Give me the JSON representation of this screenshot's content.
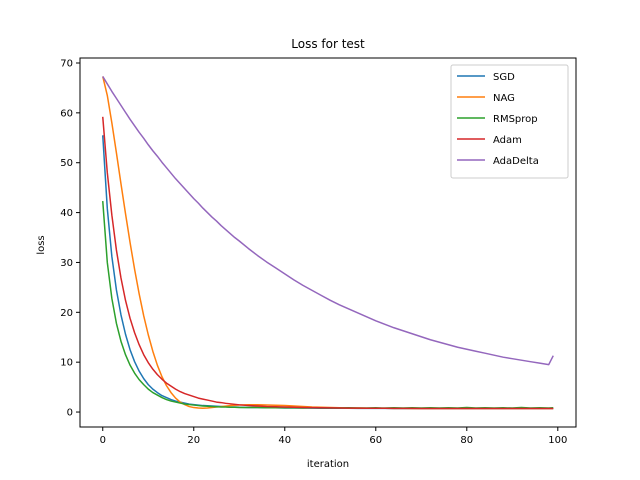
{
  "chart_data": {
    "type": "line",
    "title": "Loss for test",
    "xlabel": "iteration",
    "ylabel": "loss",
    "xlim": [
      -5,
      104
    ],
    "ylim": [
      -3,
      71
    ],
    "xticks": [
      0,
      20,
      40,
      60,
      80,
      100
    ],
    "yticks": [
      0,
      10,
      20,
      30,
      40,
      50,
      60,
      70
    ],
    "grid": false,
    "legend_position": "top-right",
    "x": [
      0,
      1,
      2,
      3,
      4,
      5,
      6,
      7,
      8,
      9,
      10,
      11,
      12,
      13,
      14,
      15,
      16,
      17,
      18,
      19,
      20,
      21,
      22,
      23,
      24,
      25,
      26,
      27,
      28,
      29,
      30,
      32,
      34,
      36,
      38,
      40,
      42,
      44,
      46,
      48,
      50,
      52,
      54,
      56,
      58,
      60,
      62,
      64,
      66,
      68,
      70,
      72,
      74,
      76,
      78,
      80,
      82,
      84,
      86,
      88,
      90,
      92,
      94,
      96,
      98,
      99
    ],
    "series": [
      {
        "name": "SGD",
        "color": "#1f77b4",
        "values": [
          55.5,
          40.8,
          31.2,
          24.5,
          19.5,
          15.6,
          12.5,
          10.1,
          8.2,
          6.7,
          5.5,
          4.6,
          3.9,
          3.3,
          2.9,
          2.5,
          2.2,
          2.0,
          1.8,
          1.6,
          1.5,
          1.4,
          1.3,
          1.25,
          1.2,
          1.15,
          1.1,
          1.05,
          1.0,
          1.0,
          0.95,
          0.9,
          0.9,
          0.85,
          0.85,
          0.8,
          0.8,
          0.8,
          0.78,
          0.77,
          0.76,
          0.75,
          0.75,
          0.74,
          0.74,
          0.73,
          0.73,
          0.72,
          0.72,
          0.72,
          0.71,
          0.71,
          0.71,
          0.7,
          0.7,
          0.7,
          0.7,
          0.7,
          0.7,
          0.7,
          0.7,
          0.7,
          0.7,
          0.7,
          0.7,
          0.7
        ]
      },
      {
        "name": "NAG",
        "color": "#ff7f0e",
        "values": [
          67.3,
          63.5,
          58.0,
          52.0,
          45.8,
          39.8,
          34.0,
          28.6,
          23.7,
          19.3,
          15.5,
          12.2,
          9.4,
          7.1,
          5.3,
          3.9,
          2.8,
          2.0,
          1.5,
          1.1,
          0.9,
          0.8,
          0.75,
          0.8,
          0.9,
          1.0,
          1.1,
          1.2,
          1.3,
          1.35,
          1.4,
          1.45,
          1.45,
          1.4,
          1.35,
          1.3,
          1.2,
          1.1,
          1.0,
          0.95,
          0.9,
          0.85,
          0.8,
          0.8,
          0.78,
          0.76,
          0.75,
          0.74,
          0.73,
          0.72,
          0.72,
          0.71,
          0.7,
          0.7,
          0.7,
          0.7,
          0.7,
          0.7,
          0.7,
          0.7,
          0.7,
          0.7,
          0.7,
          0.7,
          0.7,
          0.7
        ]
      },
      {
        "name": "RMSprop",
        "color": "#2ca02c",
        "values": [
          42.3,
          30.0,
          22.8,
          17.8,
          14.2,
          11.5,
          9.4,
          7.8,
          6.5,
          5.5,
          4.6,
          3.9,
          3.4,
          2.9,
          2.5,
          2.2,
          2.0,
          1.8,
          1.6,
          1.5,
          1.4,
          1.3,
          1.2,
          1.15,
          1.1,
          1.05,
          1.0,
          1.0,
          0.95,
          0.95,
          0.9,
          0.9,
          0.9,
          0.85,
          0.85,
          0.85,
          0.85,
          0.8,
          0.85,
          0.8,
          0.8,
          0.8,
          0.85,
          0.8,
          0.8,
          0.85,
          0.8,
          0.85,
          0.8,
          0.85,
          0.8,
          0.85,
          0.8,
          0.85,
          0.8,
          0.9,
          0.8,
          0.85,
          0.8,
          0.85,
          0.8,
          0.9,
          0.8,
          0.85,
          0.8,
          0.85
        ]
      },
      {
        "name": "Adam",
        "color": "#d62728",
        "values": [
          59.2,
          48.0,
          39.5,
          32.5,
          26.9,
          22.4,
          18.8,
          15.9,
          13.5,
          11.5,
          9.9,
          8.6,
          7.5,
          6.6,
          5.8,
          5.2,
          4.6,
          4.1,
          3.7,
          3.4,
          3.1,
          2.8,
          2.6,
          2.4,
          2.2,
          2.0,
          1.9,
          1.75,
          1.65,
          1.55,
          1.45,
          1.3,
          1.2,
          1.1,
          1.05,
          1.0,
          0.95,
          0.9,
          0.88,
          0.85,
          0.83,
          0.8,
          0.79,
          0.78,
          0.77,
          0.76,
          0.75,
          0.74,
          0.73,
          0.73,
          0.72,
          0.72,
          0.71,
          0.71,
          0.7,
          0.7,
          0.7,
          0.7,
          0.7,
          0.7,
          0.7,
          0.7,
          0.7,
          0.7,
          0.7,
          0.7
        ]
      },
      {
        "name": "AdaDelta",
        "color": "#9467bd",
        "values": [
          67.3,
          65.8,
          64.3,
          62.9,
          61.5,
          60.1,
          58.7,
          57.4,
          56.1,
          54.9,
          53.6,
          52.4,
          51.3,
          50.1,
          49.0,
          47.9,
          46.8,
          45.8,
          44.8,
          43.8,
          42.8,
          41.9,
          40.9,
          40.0,
          39.1,
          38.3,
          37.4,
          36.6,
          35.8,
          35.0,
          34.3,
          32.8,
          31.4,
          30.1,
          28.9,
          27.7,
          26.5,
          25.4,
          24.4,
          23.4,
          22.4,
          21.5,
          20.7,
          19.9,
          19.1,
          18.3,
          17.6,
          16.9,
          16.3,
          15.7,
          15.1,
          14.5,
          14.0,
          13.5,
          13.0,
          12.6,
          12.2,
          11.8,
          11.4,
          11.0,
          10.7,
          10.4,
          10.1,
          9.8,
          9.5,
          11.3
        ]
      }
    ]
  }
}
